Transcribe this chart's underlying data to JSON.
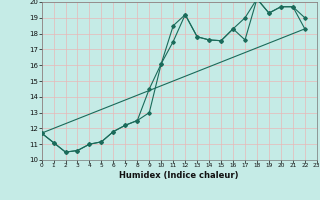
{
  "xlabel": "Humidex (Indice chaleur)",
  "bg_color": "#c5ebe6",
  "grid_color": "#e8b8b8",
  "line_color": "#1a6b5a",
  "x_min": 0,
  "x_max": 23,
  "y_min": 10,
  "y_max": 20,
  "line1_x": [
    0,
    1,
    2,
    3,
    4,
    5,
    6,
    7,
    8,
    9,
    10,
    11,
    12,
    13,
    14,
    15,
    16,
    17,
    18,
    19,
    20,
    21,
    22
  ],
  "line1_y": [
    11.7,
    11.1,
    10.5,
    10.6,
    11.0,
    11.15,
    11.8,
    12.2,
    12.5,
    13.0,
    16.1,
    17.5,
    19.2,
    17.8,
    17.6,
    17.55,
    18.3,
    17.6,
    20.2,
    19.3,
    19.7,
    19.7,
    18.3
  ],
  "line2_x": [
    0,
    1,
    2,
    3,
    4,
    5,
    6,
    7,
    8,
    9,
    10,
    11,
    12,
    13,
    14,
    15,
    16,
    17,
    18,
    19,
    20,
    21,
    22
  ],
  "line2_y": [
    11.7,
    11.1,
    10.5,
    10.6,
    11.0,
    11.15,
    11.8,
    12.2,
    12.5,
    14.5,
    16.1,
    18.5,
    19.2,
    17.8,
    17.6,
    17.55,
    18.3,
    19.0,
    20.2,
    19.3,
    19.7,
    19.7,
    19.0
  ],
  "line3_x": [
    0,
    22
  ],
  "line3_y": [
    11.7,
    18.3
  ],
  "yticks": [
    10,
    11,
    12,
    13,
    14,
    15,
    16,
    17,
    18,
    19,
    20
  ],
  "xticks": [
    0,
    1,
    2,
    3,
    4,
    5,
    6,
    7,
    8,
    9,
    10,
    11,
    12,
    13,
    14,
    15,
    16,
    17,
    18,
    19,
    20,
    21,
    22,
    23
  ]
}
